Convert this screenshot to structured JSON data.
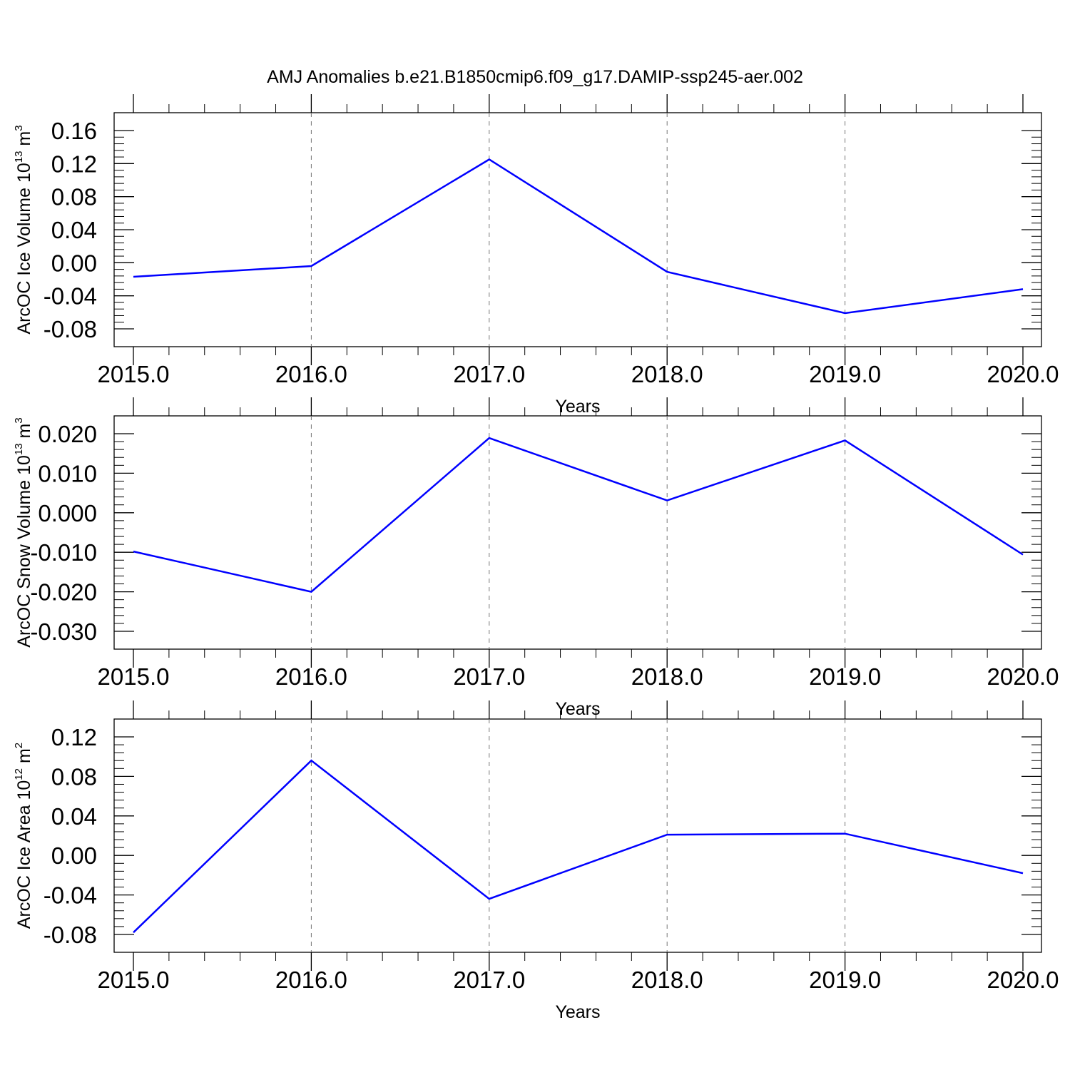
{
  "figure_title": "AMJ Anomalies b.e21.B1850cmip6.f09_g17.DAMIP-ssp245-aer.002",
  "colors": {
    "series": "#0000ff",
    "axes": "#000000",
    "grid": "#777777"
  },
  "chart_data": [
    {
      "type": "line",
      "ylabel": {
        "text": "ArcOC Ice Volume 10",
        "sup1": "13",
        "unit": " m",
        "sup2": "3"
      },
      "xlabel": "Years",
      "xlim": [
        2015,
        2020
      ],
      "ylim": [
        -0.08,
        0.16
      ],
      "x": [
        2015,
        2016,
        2017,
        2018,
        2019,
        2020
      ],
      "x_tick_labels": [
        "2015.0",
        "2016.0",
        "2017.0",
        "2018.0",
        "2019.0",
        "2020.0"
      ],
      "y_ticks": [
        0.16,
        0.12,
        0.08,
        0.04,
        0.0,
        -0.04,
        -0.08
      ],
      "y_tick_labels": [
        "0.16",
        "0.12",
        "0.08",
        "0.04",
        "0.00",
        "-0.04",
        "-0.08"
      ],
      "series": [
        {
          "values": [
            -0.017,
            -0.004,
            0.125,
            -0.011,
            -0.061,
            -0.032
          ]
        }
      ],
      "grid": "vertical dashed"
    },
    {
      "type": "line",
      "ylabel": {
        "text": "ArcOC Snow Volume 10",
        "sup1": "13",
        "unit": " m",
        "sup2": "3"
      },
      "xlabel": "Years",
      "xlim": [
        2015,
        2020
      ],
      "ylim": [
        -0.03,
        0.02
      ],
      "x": [
        2015,
        2016,
        2017,
        2018,
        2019,
        2020
      ],
      "x_tick_labels": [
        "2015.0",
        "2016.0",
        "2017.0",
        "2018.0",
        "2019.0",
        "2020.0"
      ],
      "y_ticks": [
        0.02,
        0.01,
        0.0,
        -0.01,
        -0.02,
        -0.03
      ],
      "y_tick_labels": [
        "0.020",
        "0.010",
        "0.000",
        "-0.010",
        "-0.020",
        "-0.030"
      ],
      "series": [
        {
          "values": [
            -0.0098,
            -0.02,
            0.0189,
            0.0031,
            0.0183,
            -0.0106
          ]
        }
      ],
      "grid": "vertical dashed"
    },
    {
      "type": "line",
      "ylabel": {
        "text": "ArcOC Ice Area 10",
        "sup1": "12",
        "unit": " m",
        "sup2": "2"
      },
      "xlabel": "Years",
      "xlim": [
        2015,
        2020
      ],
      "ylim": [
        -0.08,
        0.12
      ],
      "x": [
        2015,
        2016,
        2017,
        2018,
        2019,
        2020
      ],
      "x_tick_labels": [
        "2015.0",
        "2016.0",
        "2017.0",
        "2018.0",
        "2019.0",
        "2020.0"
      ],
      "y_ticks": [
        0.12,
        0.08,
        0.04,
        0.0,
        -0.04,
        -0.08
      ],
      "y_tick_labels": [
        "0.12",
        "0.08",
        "0.04",
        "0.00",
        "-0.04",
        "-0.08"
      ],
      "series": [
        {
          "values": [
            -0.078,
            0.096,
            -0.044,
            0.021,
            0.022,
            -0.018
          ]
        }
      ],
      "grid": "vertical dashed"
    }
  ]
}
